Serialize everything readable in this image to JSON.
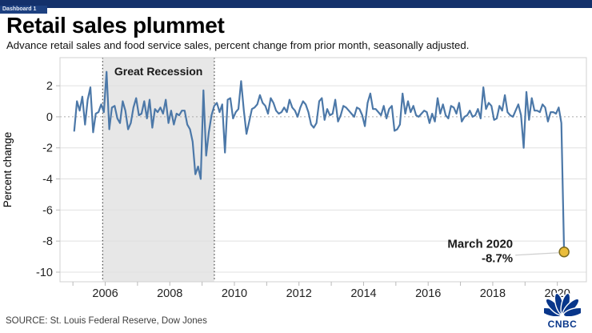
{
  "window": {
    "tab_label": "Dashboard 1"
  },
  "header": {
    "title": "Retail sales plummet",
    "subtitle": "Advance retail sales and food service sales, percent change from prior month, seasonally adjusted."
  },
  "footer": {
    "source": "SOURCE: St. Louis Federal Reserve, Dow Jones",
    "logo_text": "CNBC"
  },
  "chart_data": {
    "type": "line",
    "title": "Retail sales plummet",
    "xlabel": "",
    "ylabel": "Percent change",
    "x_start_month": "2005-01",
    "x_end_month": "2020-03",
    "xlim_years": [
      2004.6,
      2020.9
    ],
    "ylim": [
      -10.62,
      3.81
    ],
    "x_tick_labels": [
      "2006",
      "2008",
      "2010",
      "2012",
      "2014",
      "2016",
      "2018",
      "2020"
    ],
    "x_tick_years": [
      2006,
      2008,
      2010,
      2012,
      2014,
      2016,
      2018,
      2020
    ],
    "x_minor_tick_years": [
      2005,
      2006,
      2007,
      2008,
      2009,
      2010,
      2011,
      2012,
      2013,
      2014,
      2015,
      2016,
      2017,
      2018,
      2019,
      2020
    ],
    "y_ticks": [
      2,
      0,
      -2,
      -4,
      -6,
      -8,
      -10
    ],
    "y_tick_labels": [
      "2",
      "0",
      "-2",
      "-4",
      "-6",
      "-8",
      "-10"
    ],
    "grid": true,
    "legend_position": "none",
    "series": [
      {
        "name": "Advance retail sales, percent change from prior month",
        "color": "#4c78a8",
        "monthly_values_from_2005_01": [
          -0.9,
          1.0,
          0.4,
          1.3,
          -0.5,
          1.1,
          1.9,
          -1.0,
          0.2,
          0.3,
          0.8,
          0.3,
          2.9,
          -0.8,
          0.6,
          0.7,
          -0.1,
          -0.4,
          1.0,
          0.4,
          -0.8,
          -0.4,
          0.6,
          1.2,
          0.1,
          0.2,
          1.0,
          -0.1,
          1.1,
          -0.7,
          0.5,
          0.3,
          0.6,
          0.2,
          1.1,
          -0.4,
          0.4,
          -0.5,
          0.2,
          0.1,
          0.4,
          0.4,
          -0.5,
          -0.8,
          -1.6,
          -3.7,
          -3.2,
          -4.0,
          1.7,
          -2.5,
          -1.0,
          0.1,
          0.7,
          0.9,
          0.3,
          0.8,
          -2.3,
          1.1,
          1.2,
          -0.1,
          0.3,
          0.5,
          2.3,
          0.4,
          -1.1,
          -0.3,
          0.5,
          0.6,
          0.8,
          1.4,
          0.9,
          0.7,
          0.2,
          1.2,
          0.9,
          0.4,
          0.2,
          0.3,
          0.6,
          0.3,
          1.1,
          0.6,
          0.4,
          0.0,
          0.6,
          1.0,
          0.8,
          0.3,
          -0.5,
          -0.7,
          -0.4,
          1.0,
          1.2,
          -0.2,
          0.5,
          0.1,
          0.2,
          1.1,
          -0.3,
          0.1,
          0.7,
          0.6,
          0.4,
          0.2,
          0.0,
          0.6,
          0.5,
          0.1,
          -0.6,
          0.9,
          1.5,
          0.5,
          0.5,
          0.3,
          0.1,
          0.7,
          -0.1,
          0.5,
          0.7,
          -0.9,
          -0.8,
          -0.5,
          1.5,
          0.2,
          1.0,
          0.3,
          0.7,
          0.1,
          0.0,
          0.2,
          0.4,
          0.3,
          -0.4,
          0.2,
          -0.3,
          1.2,
          0.2,
          0.8,
          0.1,
          -0.1,
          0.7,
          0.6,
          0.2,
          0.9,
          -0.3,
          0.0,
          0.1,
          0.4,
          0.0,
          0.1,
          0.5,
          -0.1,
          1.9,
          0.5,
          0.9,
          0.7,
          -0.2,
          -0.1,
          0.7,
          0.4,
          1.4,
          0.3,
          0.1,
          0.0,
          0.4,
          0.8,
          0.1,
          -2.0,
          1.6,
          -0.2,
          1.2,
          0.4,
          0.4,
          0.3,
          0.8,
          0.6,
          -0.3,
          0.3,
          0.3,
          0.2,
          0.6,
          -0.4,
          -8.7
        ]
      }
    ],
    "band": {
      "label": "Great Recession",
      "start_year": 2005.92,
      "end_year": 2009.38,
      "fill": "#e7e7e7"
    },
    "annotation": {
      "title": "March 2020",
      "value": "-8.7%",
      "point": {
        "x_year": 2020.21,
        "y_value": -8.7
      },
      "marker_fill": "#eabd3b",
      "marker_stroke": "#7a6a1f"
    },
    "colors": {
      "line": "#4c78a8",
      "grid": "#e0e0e0",
      "zero_line": "#aaaaaa",
      "plot_border": "#d2d2d2",
      "band_border": "#222222",
      "topbar": "#14316b",
      "logo_navy": "#08368a"
    }
  }
}
